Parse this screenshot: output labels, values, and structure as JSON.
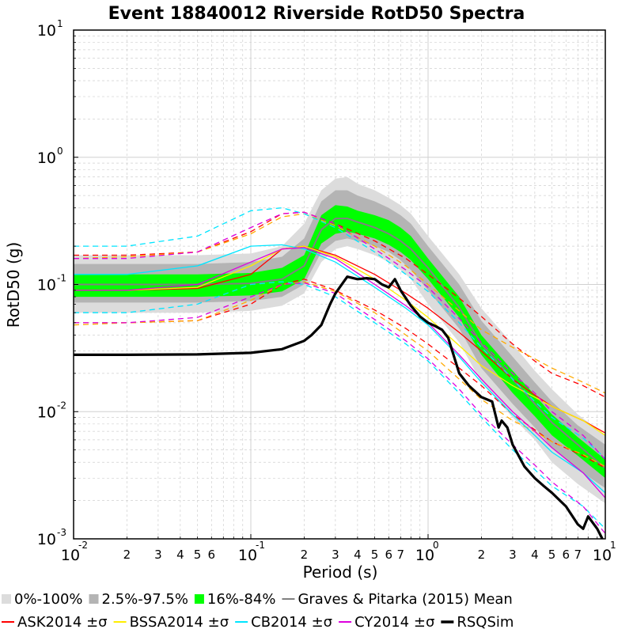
{
  "chart_data": {
    "type": "line",
    "title": "Event 18840012 Riverside RotD50 Spectra",
    "xlabel": "Period (s)",
    "ylabel": "RotD50 (g)",
    "xscale": "log",
    "yscale": "log",
    "xlim": [
      0.01,
      10
    ],
    "ylim": [
      0.001,
      10
    ],
    "grid": true,
    "legend_position": "bottom",
    "x_major_ticks": [
      {
        "base": "10",
        "exp": "-2"
      },
      {
        "base": "10",
        "exp": "-1"
      },
      {
        "base": "10",
        "exp": "0"
      },
      {
        "base": "10",
        "exp": "1"
      }
    ],
    "x_minor_tick_labels": [
      "2",
      "3",
      "4",
      "5",
      "6",
      "2",
      "3",
      "4",
      "5",
      "6",
      "7",
      "2",
      "3",
      "4",
      "5",
      "6",
      "7"
    ],
    "y_major_ticks": [
      {
        "base": "10",
        "exp": "-3"
      },
      {
        "base": "10",
        "exp": "-2"
      },
      {
        "base": "10",
        "exp": "-1"
      },
      {
        "base": "10",
        "exp": "0"
      },
      {
        "base": "10",
        "exp": "1"
      }
    ],
    "bands": [
      {
        "name": "0%-100%",
        "color": "#dcdcdc",
        "x": [
          0.01,
          0.02,
          0.05,
          0.1,
          0.15,
          0.2,
          0.25,
          0.3,
          0.35,
          0.4,
          0.5,
          0.6,
          0.7,
          0.8,
          1.0,
          1.5,
          2.0,
          3.0,
          4.0,
          5.0,
          7.0,
          10.0
        ],
        "lower": [
          0.06,
          0.06,
          0.06,
          0.062,
          0.068,
          0.085,
          0.15,
          0.19,
          0.2,
          0.19,
          0.17,
          0.15,
          0.13,
          0.11,
          0.07,
          0.035,
          0.017,
          0.009,
          0.006,
          0.004,
          0.0027,
          0.0019
        ],
        "upper": [
          0.17,
          0.17,
          0.17,
          0.175,
          0.2,
          0.3,
          0.55,
          0.68,
          0.7,
          0.62,
          0.55,
          0.48,
          0.42,
          0.36,
          0.24,
          0.12,
          0.065,
          0.034,
          0.021,
          0.015,
          0.0095,
          0.0065
        ]
      },
      {
        "name": "2.5%-97.5%",
        "color": "#b4b4b4",
        "x": [
          0.01,
          0.02,
          0.05,
          0.1,
          0.15,
          0.2,
          0.25,
          0.3,
          0.35,
          0.4,
          0.5,
          0.6,
          0.7,
          0.8,
          1.0,
          1.5,
          2.0,
          3.0,
          4.0,
          5.0,
          7.0,
          10.0
        ],
        "lower": [
          0.072,
          0.072,
          0.072,
          0.074,
          0.08,
          0.1,
          0.18,
          0.22,
          0.23,
          0.22,
          0.2,
          0.18,
          0.155,
          0.13,
          0.09,
          0.045,
          0.022,
          0.0115,
          0.0075,
          0.0052,
          0.0035,
          0.0025
        ],
        "upper": [
          0.145,
          0.145,
          0.145,
          0.15,
          0.165,
          0.23,
          0.45,
          0.55,
          0.55,
          0.5,
          0.45,
          0.4,
          0.35,
          0.3,
          0.2,
          0.1,
          0.052,
          0.027,
          0.017,
          0.012,
          0.0078,
          0.0055
        ]
      },
      {
        "name": "16%-84%",
        "color": "#00ff00",
        "x": [
          0.01,
          0.02,
          0.05,
          0.1,
          0.15,
          0.2,
          0.25,
          0.3,
          0.35,
          0.4,
          0.5,
          0.6,
          0.7,
          0.8,
          1.0,
          1.5,
          2.0,
          3.0,
          4.0,
          5.0,
          7.0,
          10.0
        ],
        "lower": [
          0.08,
          0.08,
          0.08,
          0.082,
          0.088,
          0.11,
          0.21,
          0.25,
          0.26,
          0.25,
          0.23,
          0.205,
          0.18,
          0.155,
          0.11,
          0.055,
          0.028,
          0.014,
          0.0092,
          0.0065,
          0.0045,
          0.003
        ],
        "upper": [
          0.12,
          0.12,
          0.12,
          0.123,
          0.135,
          0.17,
          0.35,
          0.42,
          0.41,
          0.38,
          0.35,
          0.32,
          0.28,
          0.24,
          0.16,
          0.08,
          0.04,
          0.021,
          0.0135,
          0.0095,
          0.0063,
          0.0042
        ]
      }
    ],
    "series": [
      {
        "name": "Graves & Pitarka (2015) Mean",
        "color": "#808080",
        "width": 2,
        "dash": false,
        "x": [
          0.01,
          0.02,
          0.05,
          0.1,
          0.15,
          0.2,
          0.25,
          0.3,
          0.35,
          0.4,
          0.5,
          0.6,
          0.7,
          0.8,
          1.0,
          1.5,
          2.0,
          3.0,
          4.0,
          5.0,
          7.0,
          10.0
        ],
        "y": [
          0.1,
          0.1,
          0.1,
          0.102,
          0.11,
          0.14,
          0.27,
          0.33,
          0.33,
          0.31,
          0.28,
          0.25,
          0.22,
          0.19,
          0.135,
          0.066,
          0.034,
          0.018,
          0.0115,
          0.0082,
          0.0055,
          0.0036
        ]
      },
      {
        "name": "ASK2014 ±σ",
        "color": "#ff0000",
        "width": 1.3,
        "dash": false,
        "x": [
          0.01,
          0.02,
          0.05,
          0.1,
          0.15,
          0.2,
          0.3,
          0.5,
          0.75,
          1.0,
          1.5,
          2.0,
          3.0,
          4.0,
          5.0,
          7.5,
          10.0
        ],
        "y": [
          0.09,
          0.09,
          0.093,
          0.12,
          0.19,
          0.2,
          0.17,
          0.12,
          0.085,
          0.065,
          0.042,
          0.03,
          0.018,
          0.0135,
          0.011,
          0.0085,
          0.0068
        ]
      },
      {
        "name": "ASK2014 +σ",
        "color": "#ff0000",
        "width": 1.3,
        "dash": true,
        "legend": false,
        "x": [
          0.01,
          0.02,
          0.05,
          0.1,
          0.15,
          0.2,
          0.3,
          0.5,
          0.75,
          1.0,
          1.5,
          2.0,
          3.0,
          4.0,
          5.0,
          7.5,
          10.0
        ],
        "y": [
          0.17,
          0.17,
          0.18,
          0.26,
          0.36,
          0.37,
          0.3,
          0.22,
          0.16,
          0.12,
          0.078,
          0.056,
          0.034,
          0.025,
          0.02,
          0.016,
          0.013
        ]
      },
      {
        "name": "ASK2014 -σ",
        "color": "#ff0000",
        "width": 1.3,
        "dash": true,
        "legend": false,
        "x": [
          0.01,
          0.02,
          0.05,
          0.1,
          0.15,
          0.2,
          0.3,
          0.5,
          0.75,
          1.0,
          1.5,
          2.0,
          3.0,
          4.0,
          5.0,
          7.5,
          10.0
        ],
        "y": [
          0.05,
          0.05,
          0.052,
          0.07,
          0.1,
          0.11,
          0.09,
          0.063,
          0.045,
          0.034,
          0.022,
          0.016,
          0.0095,
          0.0072,
          0.0058,
          0.0045,
          0.0036
        ]
      },
      {
        "name": "BSSA2014 ±σ",
        "color": "#ffee00",
        "width": 1.3,
        "dash": false,
        "x": [
          0.01,
          0.02,
          0.05,
          0.1,
          0.15,
          0.2,
          0.3,
          0.5,
          0.75,
          1.0,
          1.5,
          2.0,
          3.0,
          4.0,
          5.0,
          7.5,
          10.0
        ],
        "y": [
          0.09,
          0.09,
          0.095,
          0.14,
          0.19,
          0.2,
          0.165,
          0.11,
          0.075,
          0.055,
          0.033,
          0.023,
          0.016,
          0.013,
          0.011,
          0.0085,
          0.0065
        ]
      },
      {
        "name": "BSSA2014 +σ",
        "color": "#ffaa00",
        "width": 1.3,
        "dash": true,
        "legend": false,
        "x": [
          0.01,
          0.02,
          0.05,
          0.1,
          0.15,
          0.2,
          0.3,
          0.5,
          0.75,
          1.0,
          1.5,
          2.0,
          3.0,
          4.0,
          5.0,
          7.5,
          10.0
        ],
        "y": [
          0.16,
          0.165,
          0.18,
          0.25,
          0.34,
          0.36,
          0.29,
          0.2,
          0.14,
          0.1,
          0.062,
          0.044,
          0.032,
          0.026,
          0.022,
          0.017,
          0.014
        ]
      },
      {
        "name": "BSSA2014 -σ",
        "color": "#ffaa00",
        "width": 1.3,
        "dash": true,
        "legend": false,
        "x": [
          0.01,
          0.02,
          0.05,
          0.1,
          0.15,
          0.2,
          0.3,
          0.5,
          0.75,
          1.0,
          1.5,
          2.0,
          3.0,
          4.0,
          5.0,
          7.5,
          10.0
        ],
        "y": [
          0.048,
          0.05,
          0.052,
          0.075,
          0.1,
          0.105,
          0.088,
          0.06,
          0.04,
          0.03,
          0.018,
          0.0125,
          0.0085,
          0.007,
          0.0058,
          0.0046,
          0.0037
        ]
      },
      {
        "name": "CB2014 ±σ",
        "color": "#00e5ff",
        "width": 1.3,
        "dash": false,
        "x": [
          0.01,
          0.02,
          0.05,
          0.1,
          0.15,
          0.2,
          0.3,
          0.5,
          0.75,
          1.0,
          1.5,
          2.0,
          3.0,
          4.0,
          5.0,
          7.5,
          10.0
        ],
        "y": [
          0.12,
          0.12,
          0.14,
          0.2,
          0.205,
          0.19,
          0.15,
          0.095,
          0.065,
          0.048,
          0.027,
          0.017,
          0.0095,
          0.0065,
          0.0048,
          0.0033,
          0.0023
        ]
      },
      {
        "name": "CB2014 +σ",
        "color": "#00e5ff",
        "width": 1.3,
        "dash": true,
        "legend": false,
        "x": [
          0.01,
          0.02,
          0.05,
          0.1,
          0.15,
          0.2,
          0.3,
          0.5,
          0.75,
          1.0,
          1.5,
          2.0,
          3.0,
          4.0,
          5.0,
          7.5,
          10.0
        ],
        "y": [
          0.2,
          0.2,
          0.24,
          0.38,
          0.4,
          0.36,
          0.28,
          0.18,
          0.12,
          0.088,
          0.05,
          0.032,
          0.018,
          0.012,
          0.009,
          0.0062,
          0.0043
        ]
      },
      {
        "name": "CB2014 -σ",
        "color": "#00e5ff",
        "width": 1.3,
        "dash": true,
        "legend": false,
        "x": [
          0.01,
          0.02,
          0.05,
          0.1,
          0.15,
          0.2,
          0.3,
          0.5,
          0.75,
          1.0,
          1.5,
          2.0,
          3.0,
          4.0,
          5.0,
          7.5,
          10.0
        ],
        "y": [
          0.06,
          0.06,
          0.07,
          0.1,
          0.105,
          0.1,
          0.08,
          0.05,
          0.034,
          0.025,
          0.014,
          0.009,
          0.005,
          0.0035,
          0.0026,
          0.0018,
          0.0012
        ]
      },
      {
        "name": "CY2014 ±σ",
        "color": "#dd00dd",
        "width": 1.3,
        "dash": false,
        "x": [
          0.01,
          0.02,
          0.05,
          0.1,
          0.15,
          0.2,
          0.3,
          0.5,
          0.75,
          1.0,
          1.5,
          2.0,
          3.0,
          4.0,
          5.0,
          7.5,
          10.0
        ],
        "y": [
          0.09,
          0.09,
          0.1,
          0.15,
          0.19,
          0.195,
          0.16,
          0.1,
          0.068,
          0.05,
          0.028,
          0.018,
          0.01,
          0.007,
          0.0052,
          0.0033,
          0.0021
        ]
      },
      {
        "name": "CY2014 +σ",
        "color": "#dd00dd",
        "width": 1.3,
        "dash": true,
        "legend": false,
        "x": [
          0.01,
          0.02,
          0.05,
          0.1,
          0.15,
          0.2,
          0.3,
          0.5,
          0.75,
          1.0,
          1.5,
          2.0,
          3.0,
          4.0,
          5.0,
          7.5,
          10.0
        ],
        "y": [
          0.16,
          0.16,
          0.18,
          0.28,
          0.36,
          0.37,
          0.3,
          0.19,
          0.13,
          0.095,
          0.054,
          0.035,
          0.02,
          0.014,
          0.01,
          0.0065,
          0.0042
        ]
      },
      {
        "name": "CY2014 -σ",
        "color": "#dd00dd",
        "width": 1.3,
        "dash": true,
        "legend": false,
        "x": [
          0.01,
          0.02,
          0.05,
          0.1,
          0.15,
          0.2,
          0.3,
          0.5,
          0.75,
          1.0,
          1.5,
          2.0,
          3.0,
          4.0,
          5.0,
          7.5,
          10.0
        ],
        "y": [
          0.05,
          0.05,
          0.055,
          0.08,
          0.1,
          0.103,
          0.085,
          0.053,
          0.036,
          0.026,
          0.015,
          0.0095,
          0.0055,
          0.0038,
          0.0028,
          0.0018,
          0.0011
        ]
      },
      {
        "name": "RSQSim",
        "color": "#000000",
        "width": 3.2,
        "dash": false,
        "x": [
          0.01,
          0.02,
          0.05,
          0.1,
          0.15,
          0.2,
          0.22,
          0.25,
          0.28,
          0.3,
          0.35,
          0.4,
          0.45,
          0.5,
          0.55,
          0.6,
          0.65,
          0.7,
          0.8,
          0.9,
          1.0,
          1.1,
          1.2,
          1.3,
          1.5,
          1.7,
          2.0,
          2.3,
          2.5,
          2.6,
          2.8,
          3.0,
          3.5,
          4.0,
          4.5,
          5.0,
          6.0,
          7.0,
          7.5,
          8.0,
          9.0,
          10.0
        ],
        "y": [
          0.028,
          0.028,
          0.0282,
          0.029,
          0.031,
          0.036,
          0.04,
          0.048,
          0.07,
          0.085,
          0.115,
          0.11,
          0.112,
          0.11,
          0.1,
          0.095,
          0.11,
          0.09,
          0.068,
          0.056,
          0.05,
          0.047,
          0.044,
          0.038,
          0.02,
          0.016,
          0.013,
          0.012,
          0.0075,
          0.0085,
          0.0075,
          0.0055,
          0.0037,
          0.003,
          0.0026,
          0.0023,
          0.0018,
          0.0013,
          0.0012,
          0.0015,
          0.0012,
          0.0009
        ]
      }
    ],
    "legend_row1": [
      {
        "label": "0%-100%",
        "type": "box",
        "color": "#dcdcdc"
      },
      {
        "label": "2.5%-97.5%",
        "type": "box",
        "color": "#b4b4b4"
      },
      {
        "label": "16%-84%",
        "type": "box",
        "color": "#00ff00"
      },
      {
        "label": "Graves & Pitarka (2015) Mean",
        "type": "line",
        "color": "#808080"
      }
    ],
    "legend_row2": [
      {
        "label": "ASK2014 ±σ",
        "type": "line",
        "color": "#ff0000"
      },
      {
        "label": "BSSA2014 ±σ",
        "type": "line",
        "color": "#ffee00"
      },
      {
        "label": "CB2014 ±σ",
        "type": "line",
        "color": "#00e5ff"
      },
      {
        "label": "CY2014 ±σ",
        "type": "line",
        "color": "#dd00dd"
      },
      {
        "label": "RSQSim",
        "type": "line",
        "color": "#000000",
        "bold": true
      }
    ]
  }
}
